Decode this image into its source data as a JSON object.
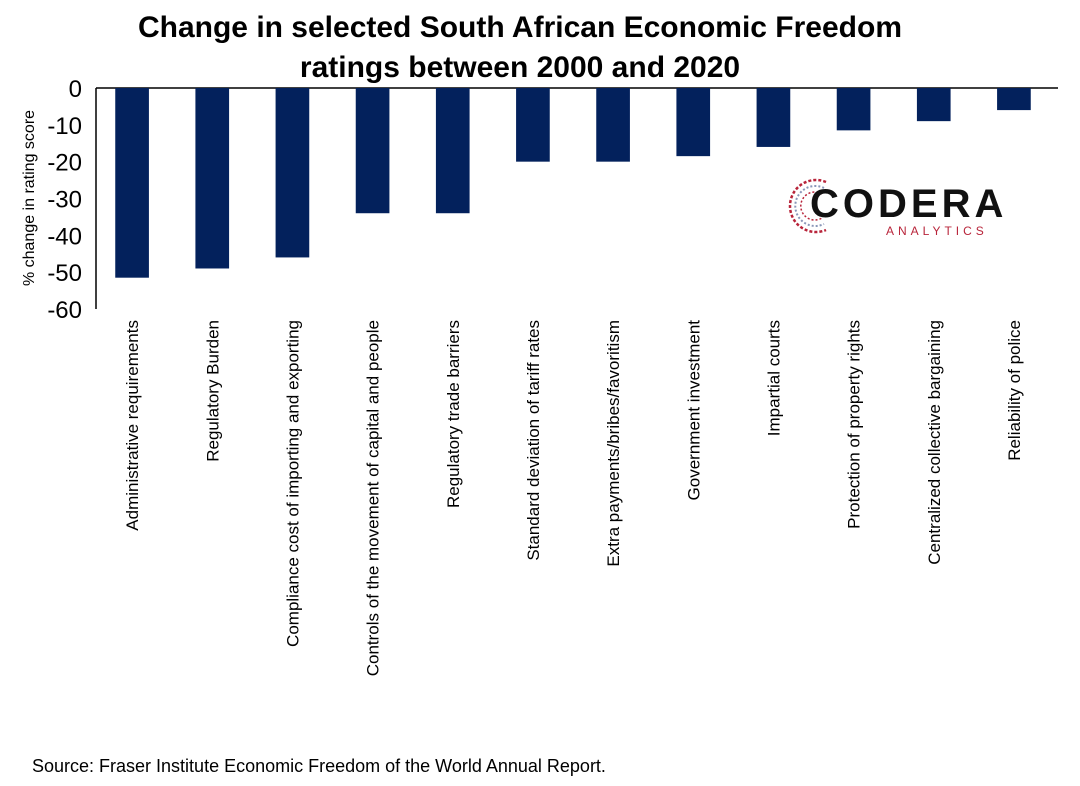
{
  "chart_data": {
    "type": "bar",
    "title": "Change in selected South African Economic Freedom",
    "title_line2": "ratings between 2000 and 2020",
    "xlabel": "",
    "ylabel": "% change in rating score",
    "ylim": [
      -60,
      0
    ],
    "yticks": [
      "0",
      "-10",
      "-20",
      "-30",
      "-40",
      "-50",
      "-60"
    ],
    "grid": false,
    "bar_color": "#03215c",
    "categories": [
      "Administrative requirements",
      "Regulatory Burden",
      "Compliance cost of importing and exporting",
      "Controls of the movement of capital and people",
      "Regulatory trade barriers",
      "Standard deviation of tariff rates",
      "Extra payments/bribes/favoritism",
      "Government investment",
      "Impartial courts",
      "Protection of property rights",
      "Centralized collective bargaining",
      "Reliability of police"
    ],
    "values": [
      -51.5,
      -49,
      -46,
      -34,
      -34,
      -20,
      -20,
      -18.5,
      -16,
      -11.5,
      -9,
      -6
    ]
  },
  "logo": {
    "word": "CODERA",
    "sub": "ANALYTICS",
    "accent_color": "#b8243a"
  },
  "source": "Source: Fraser Institute Economic Freedom of the World Annual Report."
}
